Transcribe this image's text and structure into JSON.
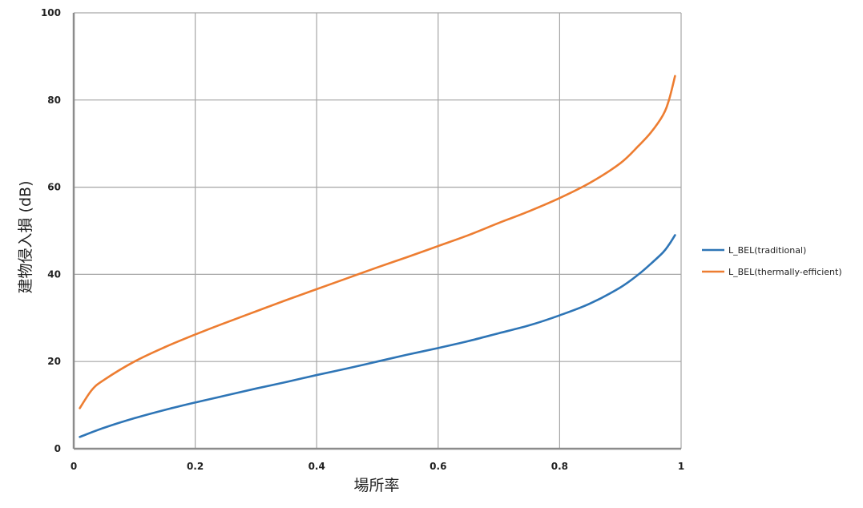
{
  "chart_data": {
    "type": "line",
    "title": "",
    "xlabel": "場所率",
    "ylabel": "建物侵入損 (dB)",
    "xlim": [
      0,
      1
    ],
    "ylim": [
      0,
      100
    ],
    "x_ticks": [
      0,
      0.2,
      0.4,
      0.6,
      0.8,
      1
    ],
    "y_ticks": [
      0,
      20,
      40,
      60,
      80,
      100
    ],
    "grid": true,
    "legend_position": "right",
    "series": [
      {
        "name": "L_BEL(traditional)",
        "color": "#2e75b6",
        "x": [
          0.01,
          0.05,
          0.1,
          0.15,
          0.2,
          0.25,
          0.3,
          0.35,
          0.4,
          0.45,
          0.5,
          0.55,
          0.6,
          0.65,
          0.7,
          0.75,
          0.8,
          0.85,
          0.9,
          0.93,
          0.95,
          0.97,
          0.98,
          0.99
        ],
        "y": [
          2.7,
          4.8,
          7.0,
          8.9,
          10.6,
          12.2,
          13.8,
          15.3,
          16.9,
          18.4,
          20.0,
          21.6,
          23.1,
          24.7,
          26.5,
          28.3,
          30.6,
          33.3,
          37.0,
          40.0,
          42.4,
          45.0,
          46.8,
          49.0
        ]
      },
      {
        "name": "L_BEL(thermally-efficient)",
        "color": "#ed7d31",
        "x": [
          0.01,
          0.03,
          0.05,
          0.1,
          0.15,
          0.2,
          0.25,
          0.3,
          0.35,
          0.4,
          0.45,
          0.5,
          0.55,
          0.6,
          0.65,
          0.7,
          0.75,
          0.8,
          0.85,
          0.9,
          0.93,
          0.95,
          0.97,
          0.98,
          0.99
        ],
        "y": [
          9.3,
          13.5,
          15.8,
          20.0,
          23.3,
          26.2,
          28.9,
          31.5,
          34.1,
          36.6,
          39.1,
          41.6,
          44.0,
          46.5,
          49.0,
          51.8,
          54.5,
          57.5,
          61.0,
          65.5,
          69.5,
          72.5,
          76.5,
          80.0,
          85.5
        ]
      }
    ]
  }
}
